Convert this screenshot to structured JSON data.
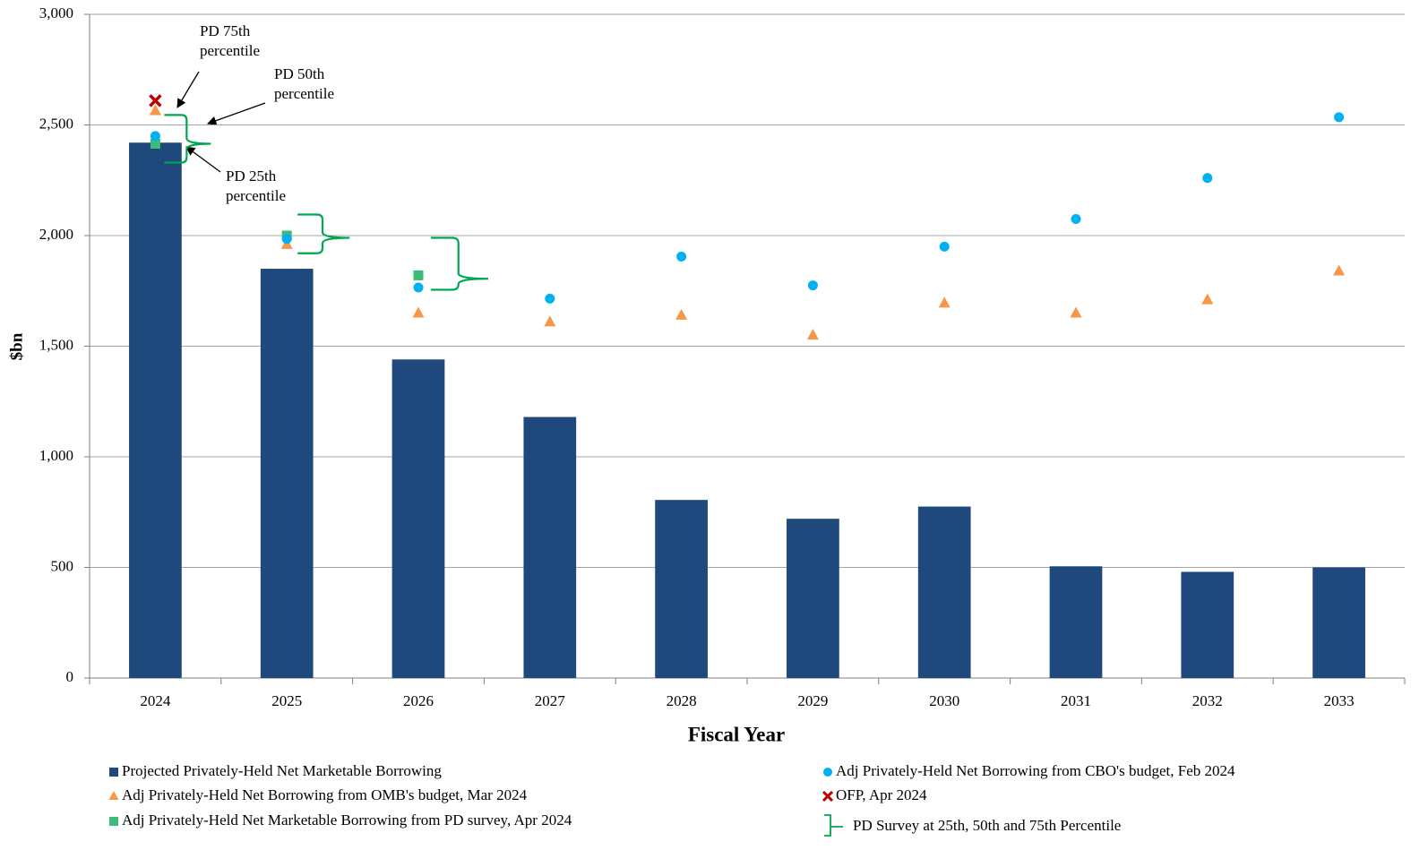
{
  "chart_data": {
    "type": "bar",
    "x_label": "Fiscal Year",
    "y_label": "$bn",
    "categories": [
      "2024",
      "2025",
      "2026",
      "2027",
      "2028",
      "2029",
      "2030",
      "2031",
      "2032",
      "2033"
    ],
    "ylim": [
      0,
      3000
    ],
    "yticks": [
      0,
      500,
      {
        "value": 1000,
        "label": "1,000"
      },
      {
        "value": 1500,
        "label": "1,500"
      },
      {
        "value": 2000,
        "label": "2,000"
      },
      {
        "value": 2500,
        "label": "2,500"
      },
      {
        "value": 3000,
        "label": "3,000"
      }
    ],
    "grid": true,
    "legend": "bottom",
    "series": [
      {
        "name": "Projected Privately-Held Net Marketable Borrowing",
        "color": "#1f497d",
        "marker": "bar",
        "values": [
          2420,
          1850,
          1440,
          1180,
          805,
          720,
          775,
          505,
          480,
          500
        ]
      },
      {
        "name": "Adj Privately-Held Net Borrowing from OMB's budget, Mar 2024",
        "color": "#f79646",
        "marker": "triangle",
        "values": [
          2565,
          1960,
          1650,
          1610,
          1640,
          1550,
          1695,
          1650,
          1710,
          1840
        ]
      },
      {
        "name": "Adj Privately-Held Net Marketable Borrowing from PD survey, Apr 2024",
        "color": "#3dbb78",
        "marker": "square",
        "values": [
          2415,
          2000,
          1820,
          null,
          null,
          null,
          null,
          null,
          null,
          null
        ]
      },
      {
        "name": "Adj Privately-Held Net Borrowing from CBO's budget, Feb 2024",
        "color": "#00b0f0",
        "marker": "circle",
        "values": [
          2450,
          1985,
          1765,
          1715,
          1905,
          1775,
          1950,
          2075,
          2260,
          2535
        ]
      },
      {
        "name": "OFP, Apr 2024",
        "color": "#c00000",
        "marker": "x",
        "values": [
          2610,
          null,
          null,
          null,
          null,
          null,
          null,
          null,
          null,
          null
        ]
      },
      {
        "name": "PD Survey at 25th, 50th and 75th Percentile",
        "color": "#00a650",
        "marker": "bracket",
        "low": [
          2330,
          1920,
          1755,
          null,
          null,
          null,
          null,
          null,
          null,
          null
        ],
        "mid": [
          2415,
          1990,
          1805,
          null,
          null,
          null,
          null,
          null,
          null,
          null
        ],
        "high": [
          2545,
          2095,
          1990,
          null,
          null,
          null,
          null,
          null,
          null,
          null
        ]
      }
    ],
    "annotations": [
      {
        "lines": [
          "PD 75th",
          "percentile"
        ]
      },
      {
        "lines": [
          "PD 50th",
          "percentile"
        ]
      },
      {
        "lines": [
          "PD 25th",
          "percentile"
        ]
      }
    ]
  }
}
